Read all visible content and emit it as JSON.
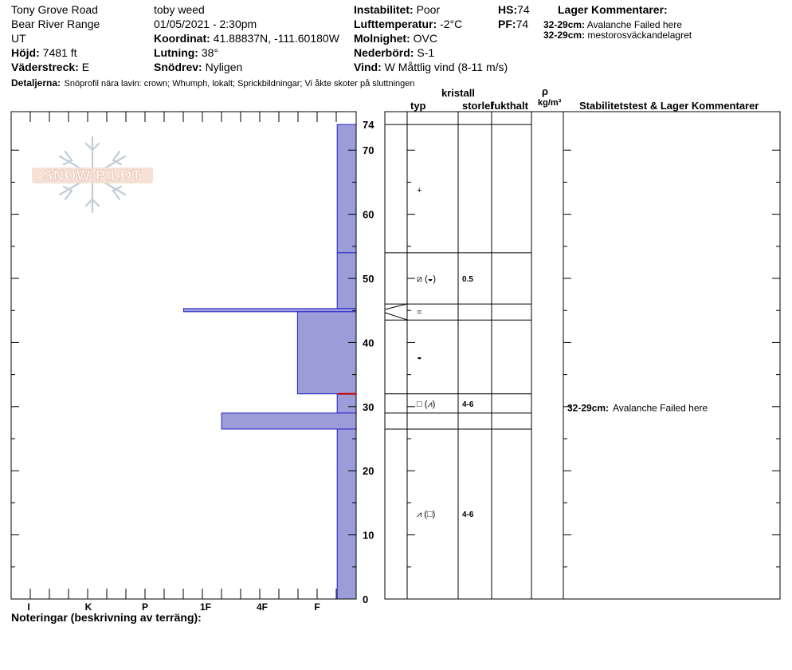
{
  "header": {
    "location": "Tony Grove Road",
    "range": "Bear River Range",
    "state": "UT",
    "elevation_label": "Höjd:",
    "elevation_value": "7481 ft",
    "aspect_label": "Väderstreck:",
    "aspect_value": "E",
    "observer": "toby weed",
    "datetime": "01/05/2021 - 2:30pm",
    "coord_label": "Koordinat:",
    "coord_value": "41.88837N, -111.60180W",
    "slope_label": "Lutning:",
    "slope_value": "38°",
    "drift_label": "Snödrev:",
    "drift_value": "Nyligen",
    "instability_label": "Instabilitet:",
    "instability_value": "Poor",
    "airtemp_label": "Lufttemperatur:",
    "airtemp_value": "-2°C",
    "cloud_label": "Molnighet:",
    "cloud_value": "OVC",
    "precip_label": "Nederbörd:",
    "precip_value": "S-1",
    "wind_label": "Vind:",
    "wind_value": "W Måttlig vind (8-11 m/s)",
    "hs_label": "HS:",
    "hs_value": "74",
    "pf_label": "PF:",
    "pf_value": "74",
    "layer_comments_title": "Lager Kommentarer:",
    "layer_comments": [
      {
        "range": "32-29cm:",
        "text": "Avalanche Failed here"
      },
      {
        "range": "32-29cm:",
        "text": "mestorosväckandelagret"
      }
    ],
    "details_label": "Detaljerna:",
    "details_value": "Snöprofil nära lavin: crown; Whumph, lokalt; Sprickbildningar; Vi åkte skoter på sluttningen"
  },
  "logo": {
    "text": "SNOW PILOT"
  },
  "columns": {
    "kristall": "kristall",
    "typ": "typ",
    "storlek": "storlek",
    "fukthalt": "fukthalt",
    "rho": "ρ",
    "density_unit": "kg/m³",
    "stability": "Stabilitetstest & Lager Kommentarer"
  },
  "footer": {
    "notes_label": "Noteringar (beskrivning av terräng):"
  },
  "chart_data": {
    "type": "bar",
    "orientation": "horizontal",
    "y_axis": {
      "label": "",
      "min": 0,
      "max": 74,
      "ticks": [
        0,
        10,
        20,
        30,
        40,
        50,
        60,
        70
      ],
      "top_label": "74"
    },
    "x_axis": {
      "labels": [
        "I",
        "K",
        "P",
        "1F",
        "4F",
        "F"
      ],
      "direction": "hardness decreasing to the right"
    },
    "hardness_layers": [
      {
        "top": 74,
        "bottom": 54,
        "hardness_fraction": 0.055
      },
      {
        "top": 54,
        "bottom": 45.3,
        "hardness_fraction": 0.055
      },
      {
        "top": 45.3,
        "bottom": 44.8,
        "hardness_fraction": 0.5
      },
      {
        "top": 44.8,
        "bottom": 32,
        "hardness_fraction": 0.17
      },
      {
        "top": 32,
        "bottom": 29,
        "hardness_fraction": 0.055
      },
      {
        "top": 29,
        "bottom": 26.5,
        "hardness_fraction": 0.39
      },
      {
        "top": 26.5,
        "bottom": 0,
        "hardness_fraction": 0.055
      }
    ],
    "layer_boundaries": [
      74,
      54,
      46,
      43.5,
      32,
      29,
      26.5
    ],
    "crystal_rows": [
      {
        "depth": 63.8,
        "symbol": "+",
        "size": ""
      },
      {
        "depth": 50,
        "symbol": "⧄ (◒)",
        "size": "0.5"
      },
      {
        "depth": 44.8,
        "symbol": "=",
        "size": ""
      },
      {
        "depth": 37.8,
        "symbol": "◒",
        "size": ""
      },
      {
        "depth": 30.5,
        "symbol": "□ (⩘)",
        "size": "4-6"
      },
      {
        "depth": 13.3,
        "symbol": "⩘ (□)",
        "size": "4-6"
      }
    ],
    "stability_comments": [
      {
        "depth": 29.8,
        "range": "32-29cm:",
        "text": "Avalanche Failed here"
      }
    ],
    "series_color": "#9c9cd8",
    "outline_color": "#2222cc",
    "failure_marker_color": "#cc0000",
    "failure_depth": 32
  }
}
